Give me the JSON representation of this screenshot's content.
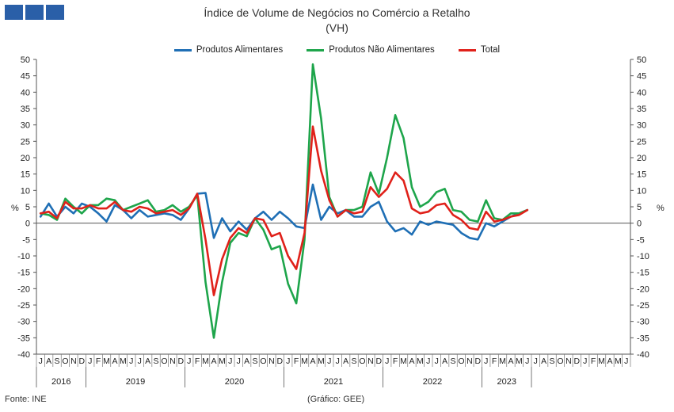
{
  "header": {
    "title": "Índice de Volume de Negócios no Comércio a Retalho",
    "subtitle": "(VH)"
  },
  "footer": {
    "source": "Fonte: INE",
    "credit": "(Gráfico: GEE)"
  },
  "chart_data": {
    "type": "line",
    "ylabel_left": "%",
    "ylabel_right": "%",
    "ylim": [
      -40,
      50
    ],
    "yticks": [
      50,
      45,
      40,
      35,
      30,
      25,
      20,
      15,
      10,
      5,
      0,
      -5,
      -10,
      -15,
      -20,
      -25,
      -30,
      -35,
      -40
    ],
    "grid": false,
    "legend_placement": "top-center",
    "month_labels": [
      "J",
      "A",
      "S",
      "O",
      "N",
      "D",
      "J",
      "F",
      "M",
      "A",
      "M",
      "J",
      "J",
      "A",
      "S",
      "O",
      "N",
      "D",
      "J",
      "F",
      "M",
      "A",
      "M",
      "J",
      "J",
      "A",
      "S",
      "O",
      "N",
      "D",
      "J",
      "F",
      "M",
      "A",
      "M",
      "J",
      "J",
      "A",
      "S",
      "O",
      "N",
      "D",
      "J",
      "F",
      "M",
      "A",
      "M",
      "J",
      "J",
      "A",
      "S",
      "O",
      "N",
      "D",
      "J",
      "F",
      "M",
      "A",
      "M",
      "J",
      "J",
      "A",
      "S",
      "O",
      "N",
      "D",
      "J",
      "F",
      "M",
      "A",
      "M",
      "J"
    ],
    "year_groups": [
      {
        "label": "2016",
        "months": 6
      },
      {
        "label": "2019",
        "months": 12
      },
      {
        "label": "2020",
        "months": 12
      },
      {
        "label": "2021",
        "months": 12
      },
      {
        "label": "2022",
        "months": 12
      },
      {
        "label": "2023",
        "months": 6
      }
    ],
    "series": [
      {
        "name": "Produtos Alimentares",
        "color": "#1f6fb5",
        "values": [
          2.0,
          6.0,
          2.0,
          5.0,
          3.0,
          6.0,
          5.0,
          3.0,
          0.5,
          5.5,
          4.0,
          1.5,
          4.0,
          2.0,
          2.5,
          3.0,
          2.5,
          1.0,
          4.5,
          9.0,
          9.2,
          -4.5,
          1.5,
          -2.5,
          0.5,
          -2.0,
          1.5,
          3.5,
          1.0,
          3.5,
          1.5,
          -1.0,
          -1.5,
          11.8,
          1.0,
          5.0,
          3.0,
          4.0,
          2.0,
          2.0,
          5.0,
          6.5,
          0.5,
          -2.5,
          -1.5,
          -3.5,
          0.5,
          -0.5,
          0.5,
          0.0,
          -0.5,
          -3.0,
          -4.5,
          -5.0,
          0.0,
          -1.0,
          0.5,
          2.0,
          3.0,
          4.0
        ]
      },
      {
        "name": "Produtos Não Alimentares",
        "color": "#1ea54b",
        "values": [
          3.0,
          2.5,
          1.0,
          7.5,
          5.0,
          3.0,
          5.5,
          5.5,
          7.5,
          7.0,
          4.0,
          5.0,
          6.0,
          7.0,
          3.5,
          4.0,
          5.5,
          3.5,
          5.0,
          8.5,
          -18.0,
          -35.0,
          -18.0,
          -6.0,
          -3.0,
          -4.0,
          1.5,
          -2.0,
          -8.0,
          -7.0,
          -18.5,
          -24.5,
          -5.0,
          48.5,
          32.0,
          8.0,
          2.0,
          4.0,
          4.0,
          5.0,
          15.5,
          9.0,
          20.0,
          33.0,
          26.0,
          11.0,
          5.0,
          6.5,
          9.5,
          10.5,
          4.0,
          3.5,
          1.0,
          0.5,
          7.0,
          1.5,
          1.0,
          3.0,
          3.0,
          4.0
        ]
      },
      {
        "name": "Total",
        "color": "#e0211a",
        "values": [
          3.0,
          3.5,
          1.5,
          6.5,
          4.5,
          4.5,
          5.5,
          4.5,
          4.5,
          6.5,
          4.0,
          3.5,
          5.0,
          4.5,
          3.0,
          3.5,
          4.0,
          2.5,
          4.5,
          9.0,
          -5.0,
          -22.0,
          -11.0,
          -4.5,
          -1.5,
          -3.0,
          1.5,
          1.0,
          -4.0,
          -3.0,
          -10.0,
          -14.0,
          -3.0,
          29.5,
          16.0,
          7.0,
          2.0,
          4.0,
          3.0,
          3.5,
          11.0,
          8.0,
          10.5,
          15.5,
          13.0,
          4.5,
          3.0,
          3.5,
          5.5,
          6.0,
          2.5,
          1.0,
          -1.5,
          -2.0,
          3.5,
          0.5,
          1.0,
          2.0,
          2.5,
          4.0
        ]
      }
    ]
  }
}
